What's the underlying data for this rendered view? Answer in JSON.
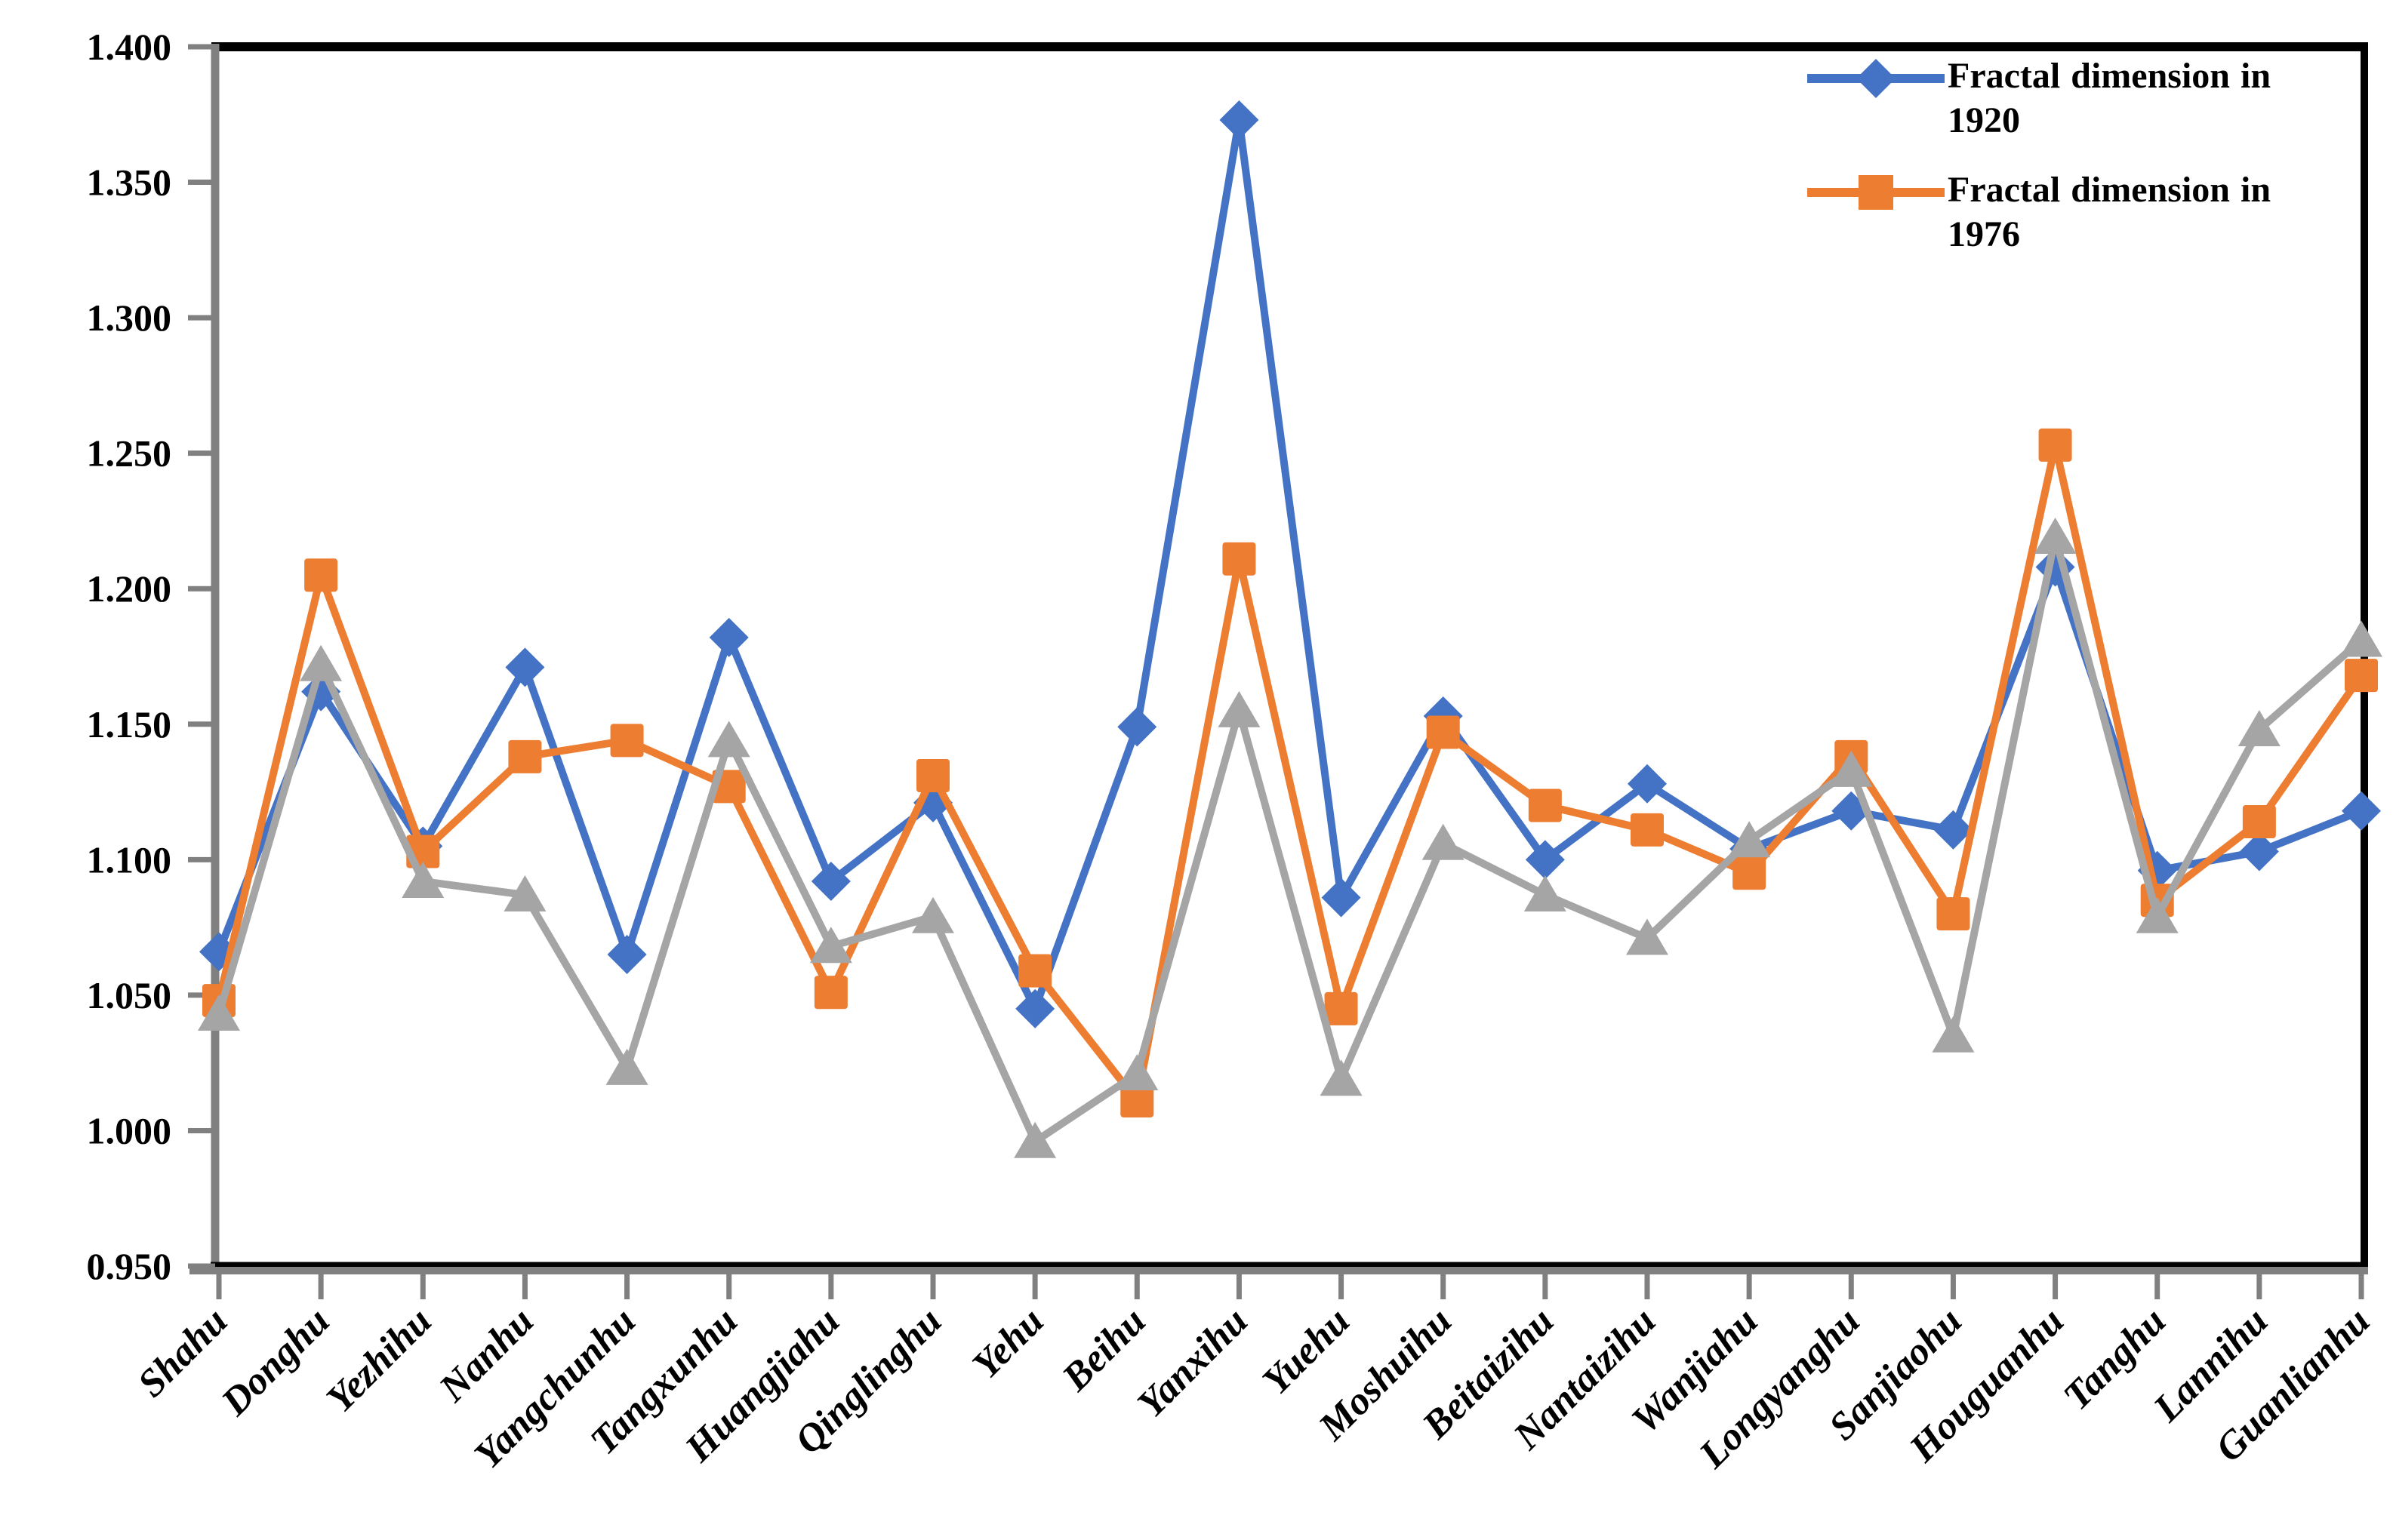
{
  "chart_data": {
    "type": "line",
    "title": "",
    "xlabel": "",
    "ylabel": "",
    "categories": [
      "Shahu",
      "Donghu",
      "Yezhihu",
      "Nanhu",
      "Yangchunhu",
      "Tangxunhu",
      "Huangjiahu",
      "Qinglinghu",
      "Yehu",
      "Beihu",
      "Yanxihu",
      "Yuehu",
      "Moshuihu",
      "Beitaizihu",
      "Nantaizihu",
      "Wanjiahu",
      "Longyanghu",
      "Sanjiaohu",
      "Houguanhu",
      "Tanghu",
      "Lannihu",
      "Guanlianhu"
    ],
    "series": [
      {
        "name": "Fractal dimension in 1920",
        "color": "#4472C4",
        "marker": "diamond",
        "values": [
          1.066,
          1.162,
          1.105,
          1.171,
          1.065,
          1.182,
          1.092,
          1.121,
          1.045,
          1.149,
          1.373,
          1.086,
          1.153,
          1.1,
          1.128,
          1.104,
          1.118,
          1.111,
          1.208,
          1.096,
          1.103,
          1.118
        ]
      },
      {
        "name": "Fractal dimension in 1976",
        "color": "#ED7D31",
        "marker": "square",
        "values": [
          1.048,
          1.205,
          1.103,
          1.138,
          1.144,
          1.127,
          1.051,
          1.131,
          1.059,
          1.011,
          1.211,
          1.045,
          1.147,
          1.12,
          1.111,
          1.095,
          1.138,
          1.08,
          1.253,
          1.085,
          1.114,
          1.168
        ]
      },
      {
        "name": "",
        "color": "#A5A5A5",
        "marker": "triangle",
        "values": [
          1.043,
          1.172,
          1.092,
          1.087,
          1.023,
          1.144,
          1.068,
          1.079,
          0.996,
          1.021,
          1.155,
          1.019,
          1.106,
          1.087,
          1.071,
          1.107,
          1.133,
          1.035,
          1.219,
          1.079,
          1.148,
          1.181
        ]
      }
    ],
    "ylim": [
      0.95,
      1.4
    ],
    "ytick_step": 0.05,
    "ytick_decimals": 3,
    "grid": false,
    "legend_position": "top-right",
    "axis_color": "#808080",
    "border_color": "#000000",
    "background": "#FFFFFF",
    "ytick_labels": [
      "0.950",
      "1.000",
      "1.050",
      "1.100",
      "1.150",
      "1.200",
      "1.250",
      "1.300",
      "1.350",
      "1.400"
    ]
  }
}
